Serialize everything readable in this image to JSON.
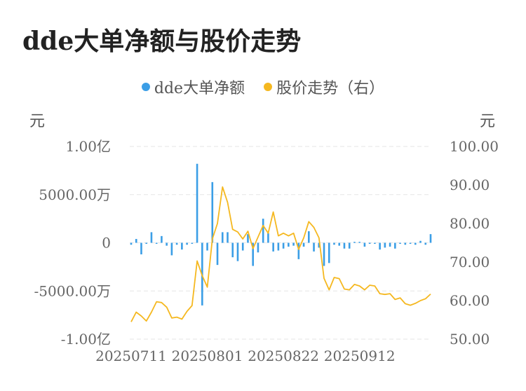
{
  "title": "dde大单净额与股价走势",
  "legend": [
    {
      "label": "dde大单净额",
      "color": "#3b9ee6"
    },
    {
      "label": "股价走势（右）",
      "color": "#f5b820"
    }
  ],
  "left_unit": "元",
  "right_unit": "元",
  "chart_data": {
    "type": "bar+line",
    "title": "dde大单净额与股价走势",
    "x_tick_labels": [
      "20250711",
      "20250801",
      "20250822",
      "20250912"
    ],
    "y_left": {
      "ticks": [
        1.0,
        0.5,
        0,
        -0.5,
        -1.0
      ],
      "tick_labels": [
        "1.00亿",
        "5000.00万",
        "0",
        "-5000.00万",
        "-1.00亿"
      ],
      "range_yi": [
        -1.0,
        1.0
      ]
    },
    "y_right": {
      "ticks": [
        100,
        90,
        80,
        70,
        60,
        50
      ],
      "tick_labels": [
        "100.00",
        "90.00",
        "80.00",
        "70.00",
        "60.00",
        "50.00"
      ],
      "range": [
        50,
        100
      ]
    },
    "grid": true,
    "legend_position": "top-center",
    "series": [
      {
        "name": "dde大单净额",
        "type": "bar",
        "unit": "亿",
        "values": [
          -0.02,
          0.04,
          -0.12,
          0.0,
          0.11,
          0.0,
          0.07,
          -0.03,
          -0.13,
          -0.02,
          -0.07,
          -0.02,
          0.0,
          0.82,
          -0.65,
          -0.08,
          0.63,
          -0.23,
          0.11,
          0.11,
          -0.15,
          -0.19,
          -0.08,
          0.09,
          -0.24,
          -0.1,
          0.25,
          0.1,
          -0.09,
          -0.08,
          -0.06,
          -0.04,
          -0.03,
          -0.17,
          -0.04,
          0.12,
          -0.09,
          -0.05,
          -0.24,
          -0.21,
          -0.02,
          -0.03,
          -0.06,
          -0.06,
          0.01,
          0.01,
          -0.04,
          0.0,
          -0.01,
          -0.07,
          -0.05,
          -0.04,
          -0.06,
          0.0,
          -0.02,
          -0.01,
          -0.02,
          0.02,
          -0.02,
          0.09
        ]
      },
      {
        "name": "股价走势（右）",
        "type": "line",
        "axis": "right",
        "values": [
          54.5,
          57.0,
          56.0,
          54.7,
          57.0,
          59.7,
          59.5,
          58.3,
          55.5,
          55.7,
          55.2,
          57.2,
          58.7,
          70.3,
          66.5,
          63.5,
          76.0,
          80.0,
          89.5,
          85.5,
          78.5,
          77.8,
          76.0,
          78.0,
          73.5,
          76.5,
          79.5,
          77.5,
          83.0,
          76.8,
          77.5,
          76.8,
          77.5,
          73.3,
          76.3,
          80.5,
          79.0,
          76.3,
          65.8,
          62.8,
          66.0,
          65.7,
          63.0,
          62.8,
          64.2,
          63.8,
          62.8,
          64.0,
          63.8,
          61.8,
          61.6,
          61.8,
          60.3,
          60.7,
          59.2,
          58.8,
          59.3,
          60.0,
          60.5,
          61.7
        ]
      }
    ]
  }
}
